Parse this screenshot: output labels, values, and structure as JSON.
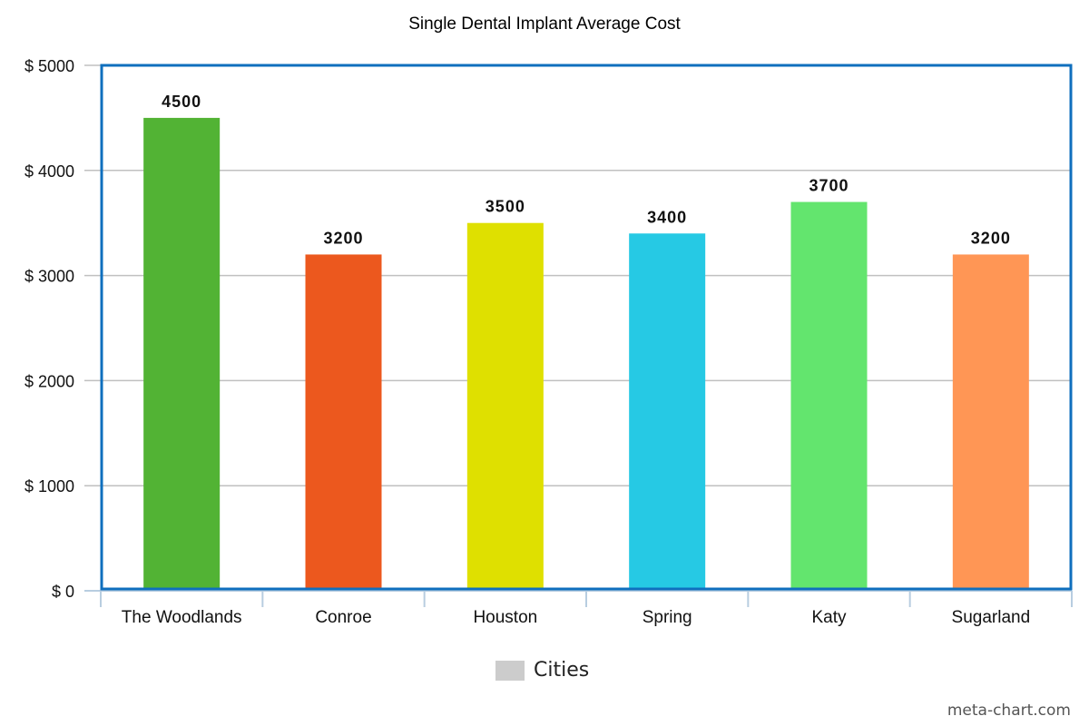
{
  "chart_data": {
    "type": "bar",
    "title": "Single Dental Implant Average Cost",
    "xlabel": "",
    "ylabel": "",
    "categories": [
      "The Woodlands",
      "Conroe",
      "Houston",
      "Spring",
      "Katy",
      "Sugarland"
    ],
    "values": [
      4500,
      3200,
      3500,
      3400,
      3700,
      3200
    ],
    "data_labels": [
      "4500",
      "3200",
      "3500",
      "3400",
      "3700",
      "3200"
    ],
    "bar_colors": [
      "#52b334",
      "#ec581e",
      "#dfe000",
      "#26c9e4",
      "#63e56e",
      "#ff9655"
    ],
    "ylim": [
      0,
      5000
    ],
    "yticks": [
      0,
      1000,
      2000,
      3000,
      4000,
      5000
    ],
    "ytick_labels": [
      "$ 0",
      "$ 1000",
      "$ 2000",
      "$ 3000",
      "$ 4000",
      "$ 5000"
    ],
    "grid": true,
    "plot_border_color": "#0f6fbe",
    "legend": {
      "position": "bottom",
      "label": "Cities",
      "color": "#cccccc"
    }
  },
  "watermark": "meta-chart.com"
}
